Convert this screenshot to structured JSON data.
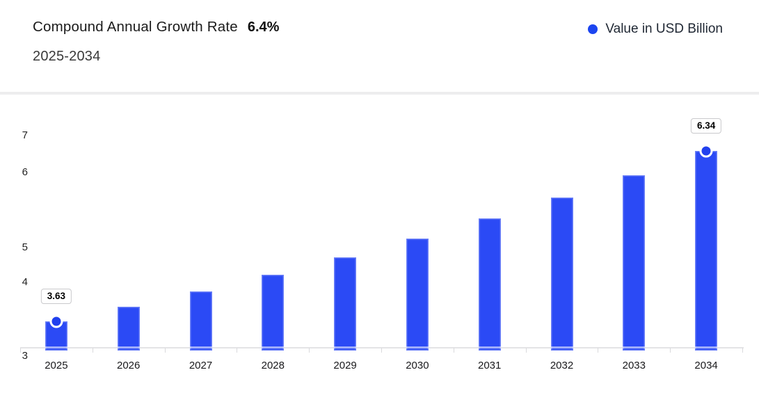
{
  "header": {
    "title": "Compound Annual Growth Rate",
    "cagr_value": "6.4%",
    "subtitle": "2025-2034"
  },
  "legend": {
    "label": "Value in USD Billion",
    "marker_color": "#1c45f0"
  },
  "colors": {
    "bar": "#2b4af5",
    "marker": "#2140ee",
    "axis_line": "#e4e4e6",
    "divider": "#ededee",
    "background": "#ffffff"
  },
  "chart_data": {
    "type": "bar",
    "title": "Compound Annual Growth Rate 6.4%",
    "subtitle": "2025-2034",
    "xlabel": "",
    "ylabel": "Value in USD Billion",
    "categories": [
      "2025",
      "2026",
      "2027",
      "2028",
      "2029",
      "2030",
      "2031",
      "2032",
      "2033",
      "2034"
    ],
    "series": [
      {
        "name": "Value in USD Billion",
        "values": [
          3.63,
          3.86,
          4.11,
          4.37,
          4.65,
          4.95,
          5.27,
          5.6,
          5.96,
          6.34
        ]
      }
    ],
    "labeled_points": [
      {
        "category": "2025",
        "label": "3.63"
      },
      {
        "category": "2034",
        "label": "6.34"
      }
    ],
    "yticks": [
      "3",
      "4",
      "5",
      "6",
      "7"
    ],
    "ylim": [
      3,
      7
    ],
    "grid": false,
    "legend_position": "top-right",
    "cagr": "6.4%"
  }
}
